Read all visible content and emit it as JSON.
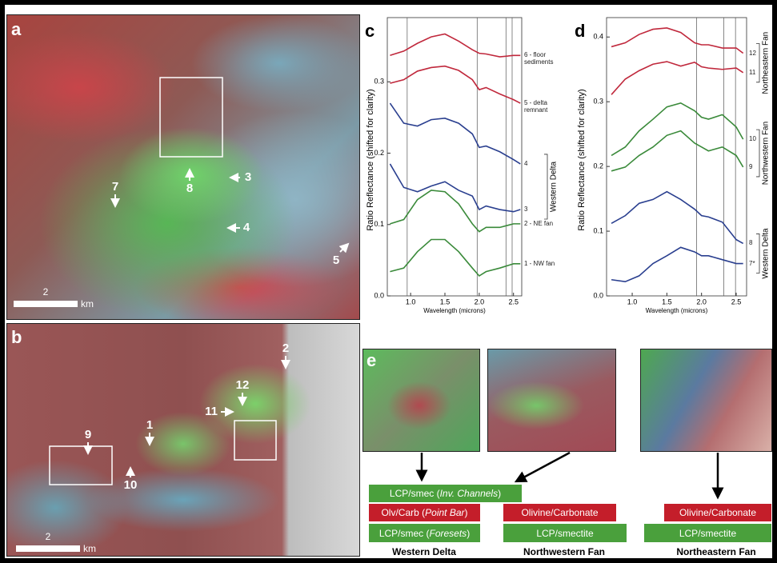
{
  "chart_data": [
    {
      "type": "line",
      "panel": "c",
      "ylabel": "Ratio Reflectance (shifted for clarity)",
      "xlabel": "Wavelength (microns)",
      "xlim": [
        0.66,
        2.62
      ],
      "ylim": [
        0,
        0.39
      ],
      "xticks": [
        {
          "value": 1.0,
          "label": "1.0"
        },
        1.5,
        {
          "value": 2.0,
          "label": "2.0"
        },
        2.5
      ],
      "yticks": [
        {
          "value": 0,
          "label": "0.0"
        },
        0.1,
        0.2,
        0.3
      ],
      "vlines": [
        0.95,
        1.97,
        2.39,
        2.48
      ],
      "x": [
        0.7,
        0.9,
        1.1,
        1.3,
        1.5,
        1.7,
        1.9,
        2.0,
        2.1,
        2.3,
        2.5,
        2.6
      ],
      "series": [
        {
          "name": "6 - floor sediments",
          "color": "#c0283c",
          "values": [
            0.337,
            0.343,
            0.354,
            0.363,
            0.367,
            0.357,
            0.345,
            0.34,
            0.339,
            0.335,
            0.337,
            0.337
          ]
        },
        {
          "name": "5 - delta remnant",
          "color": "#c0283c",
          "values": [
            0.298,
            0.303,
            0.315,
            0.32,
            0.322,
            0.316,
            0.303,
            0.289,
            0.292,
            0.283,
            0.275,
            0.27
          ]
        },
        {
          "name": "4",
          "color": "#2a3f8f",
          "values": [
            0.27,
            0.242,
            0.238,
            0.247,
            0.249,
            0.242,
            0.227,
            0.208,
            0.21,
            0.202,
            0.191,
            0.185
          ]
        },
        {
          "name": "3",
          "color": "#2a3f8f",
          "values": [
            0.185,
            0.152,
            0.146,
            0.154,
            0.16,
            0.148,
            0.14,
            0.121,
            0.126,
            0.121,
            0.118,
            0.121
          ]
        },
        {
          "name": "2 - NE fan",
          "color": "#3a8a3a",
          "values": [
            0.101,
            0.107,
            0.135,
            0.148,
            0.146,
            0.129,
            0.101,
            0.09,
            0.096,
            0.096,
            0.101,
            0.101
          ]
        },
        {
          "name": "1 - NW fan",
          "color": "#3a8a3a",
          "values": [
            0.034,
            0.039,
            0.062,
            0.079,
            0.079,
            0.062,
            0.039,
            0.028,
            0.034,
            0.039,
            0.045,
            0.045
          ]
        }
      ],
      "groups": [
        "Western Delta"
      ]
    },
    {
      "type": "line",
      "panel": "d",
      "ylabel": "Ratio Reflectance (shifted for clarity)",
      "xlabel": "Wavelength (microns)",
      "xlim": [
        0.63,
        2.65
      ],
      "ylim": [
        0,
        0.43
      ],
      "xticks": [
        {
          "value": 1.0,
          "label": "1.0"
        },
        1.5,
        {
          "value": 2.0,
          "label": "2.0"
        },
        2.5
      ],
      "yticks": [
        {
          "value": 0,
          "label": "0.0"
        },
        0.1,
        0.2,
        0.3,
        0.4
      ],
      "vlines": [
        1.93,
        2.32,
        2.49
      ],
      "x": [
        0.7,
        0.9,
        1.1,
        1.3,
        1.5,
        1.7,
        1.9,
        2.0,
        2.1,
        2.3,
        2.5,
        2.6
      ],
      "series": [
        {
          "name": "12",
          "color": "#c0283c",
          "values": [
            0.385,
            0.391,
            0.404,
            0.412,
            0.414,
            0.407,
            0.391,
            0.388,
            0.388,
            0.383,
            0.383,
            0.375
          ]
        },
        {
          "name": "11",
          "color": "#c0283c",
          "values": [
            0.311,
            0.335,
            0.348,
            0.358,
            0.362,
            0.355,
            0.361,
            0.354,
            0.352,
            0.35,
            0.352,
            0.345
          ]
        },
        {
          "name": "10",
          "color": "#3a8a3a",
          "values": [
            0.217,
            0.23,
            0.255,
            0.273,
            0.292,
            0.298,
            0.286,
            0.276,
            0.273,
            0.28,
            0.261,
            0.242
          ]
        },
        {
          "name": "9",
          "color": "#3a8a3a",
          "values": [
            0.193,
            0.199,
            0.217,
            0.23,
            0.248,
            0.255,
            0.236,
            0.23,
            0.224,
            0.23,
            0.217,
            0.199
          ]
        },
        {
          "name": "8",
          "color": "#2a3f8f",
          "values": [
            0.112,
            0.124,
            0.143,
            0.149,
            0.161,
            0.149,
            0.134,
            0.124,
            0.122,
            0.114,
            0.087,
            0.081
          ]
        },
        {
          "name": "7*",
          "color": "#2a3f8f",
          "values": [
            0.025,
            0.022,
            0.031,
            0.05,
            0.062,
            0.075,
            0.068,
            0.062,
            0.062,
            0.056,
            0.05,
            0.05
          ]
        }
      ],
      "groups": [
        "Northeastern Fan",
        "Northwestern Fan",
        "Western Delta"
      ]
    }
  ],
  "panel_a": {
    "label": "a",
    "arrows": [
      "7",
      "8",
      "3",
      "4",
      "5"
    ],
    "scale": "2",
    "unit": "km"
  },
  "panel_b": {
    "label": "b",
    "arrows": [
      "2",
      "12",
      "11",
      "1",
      "9",
      "10"
    ],
    "scale": "2",
    "unit": "km"
  },
  "panel_e": {
    "label": "e",
    "blocks": [
      {
        "parts": [
          "LCP/smec (",
          "Inv. Channels",
          ")"
        ],
        "color": "#4aa03c"
      },
      {
        "parts": [
          "Olv/Carb (",
          "Point Bar",
          ")"
        ],
        "color": "#c41e2a"
      },
      {
        "parts": [
          "LCP/smec (",
          "Foresets",
          ")"
        ],
        "color": "#4aa03c"
      },
      {
        "parts": [
          "Olivine/Carbonate"
        ],
        "color": "#c41e2a"
      },
      {
        "parts": [
          "LCP/smectite"
        ],
        "color": "#4aa03c"
      },
      {
        "parts": [
          "Olivine/Carbonate"
        ],
        "color": "#c41e2a"
      },
      {
        "parts": [
          "LCP/smectite"
        ],
        "color": "#4aa03c"
      }
    ],
    "columns": [
      "Western Delta",
      "Northwestern Fan",
      "Northeastern Fan"
    ]
  }
}
